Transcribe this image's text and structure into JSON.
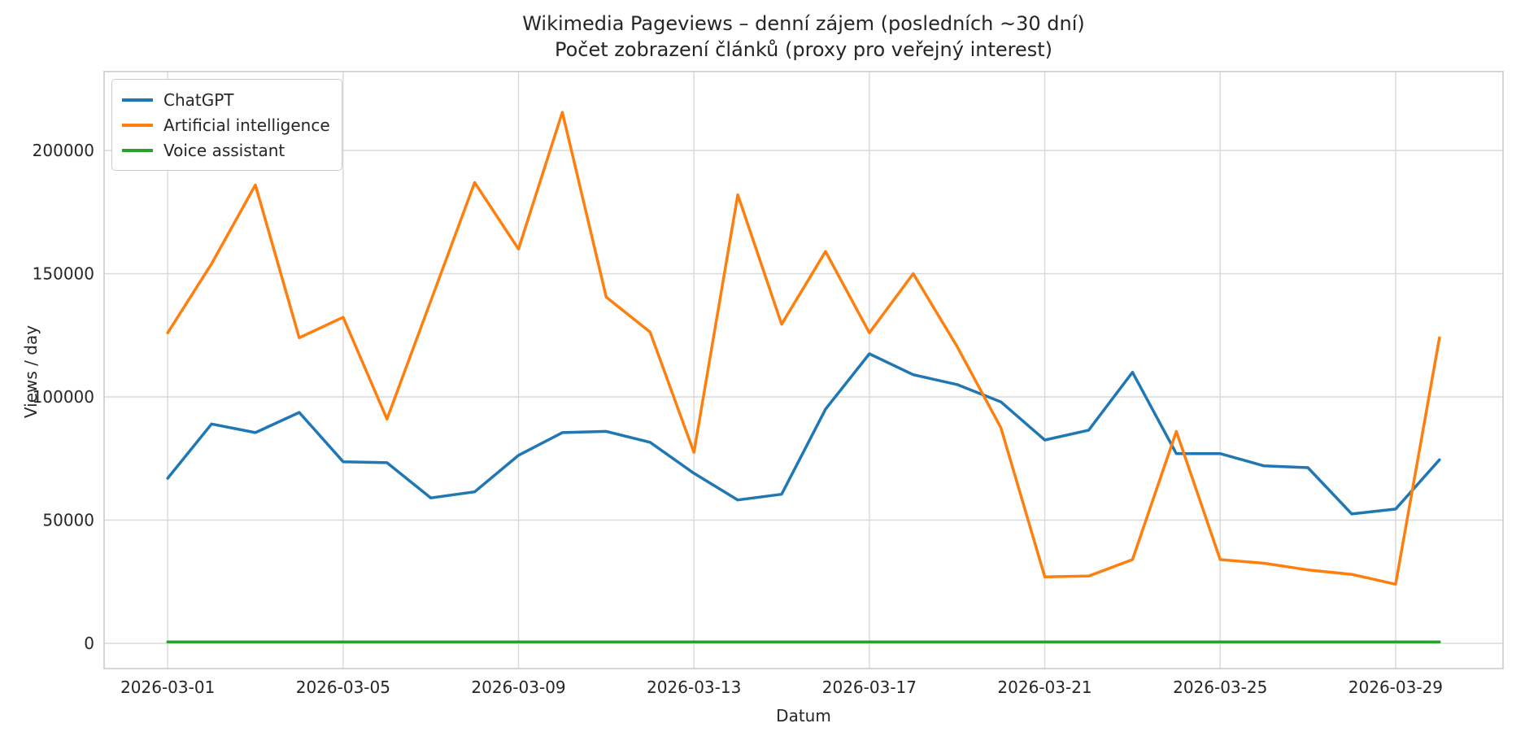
{
  "figure": {
    "title": "Wikimedia Pageviews – denní zájem (posledních ~30 dní)",
    "subtitle": "Počet zobrazení článků (proxy pro veřejný interest)",
    "background_color": "#ffffff",
    "grid_color": "#d9d9d9",
    "spine_color": "#cccccc",
    "text_color": "#262626"
  },
  "chart_data": {
    "type": "line",
    "title": "Wikimedia Pageviews – denní zájem (posledních ~30 dní)",
    "subtitle": "Počet zobrazení článků (proxy pro veřejný interest)",
    "xlabel": "Datum",
    "ylabel": "Views / day",
    "grid": true,
    "legend_position": "upper left",
    "x": [
      "2026-03-01",
      "2026-03-02",
      "2026-03-03",
      "2026-03-04",
      "2026-03-05",
      "2026-03-06",
      "2026-03-07",
      "2026-03-08",
      "2026-03-09",
      "2026-03-10",
      "2026-03-11",
      "2026-03-12",
      "2026-03-13",
      "2026-03-14",
      "2026-03-15",
      "2026-03-16",
      "2026-03-17",
      "2026-03-18",
      "2026-03-19",
      "2026-03-20",
      "2026-03-21",
      "2026-03-22",
      "2026-03-23",
      "2026-03-24",
      "2026-03-25",
      "2026-03-26",
      "2026-03-27",
      "2026-03-28",
      "2026-03-29",
      "2026-03-30"
    ],
    "x_tick_labels": [
      "2026-03-01",
      "2026-03-05",
      "2026-03-09",
      "2026-03-13",
      "2026-03-17",
      "2026-03-21",
      "2026-03-25",
      "2026-03-29"
    ],
    "x_tick_indices": [
      0,
      4,
      8,
      12,
      16,
      20,
      24,
      28
    ],
    "y_ticks": [
      0,
      50000,
      100000,
      150000,
      200000
    ],
    "ylim": [
      -10231,
      232013
    ],
    "series": [
      {
        "name": "ChatGPT",
        "color": "#1f77b4",
        "values": [
          67000,
          89000,
          85500,
          93700,
          73700,
          73300,
          59000,
          61500,
          76300,
          85500,
          86000,
          81600,
          69000,
          58200,
          60500,
          95000,
          117500,
          109000,
          105000,
          98000,
          82500,
          86500,
          110000,
          77000,
          77000,
          72000,
          71300,
          52500,
          54500,
          74500
        ]
      },
      {
        "name": "Artificial intelligence",
        "color": "#ff7f0e",
        "values": [
          126000,
          154000,
          186000,
          124000,
          132300,
          91000,
          139000,
          187000,
          160000,
          215500,
          140500,
          126300,
          77500,
          182000,
          129500,
          159000,
          126000,
          150000,
          120500,
          87500,
          27000,
          27300,
          34000,
          86000,
          34000,
          32500,
          29800,
          28000,
          24000,
          124000
        ]
      },
      {
        "name": "Voice assistant",
        "color": "#2ca02c",
        "values": [
          600,
          600,
          600,
          600,
          600,
          600,
          600,
          600,
          600,
          600,
          600,
          600,
          600,
          600,
          600,
          600,
          600,
          600,
          600,
          600,
          600,
          600,
          600,
          600,
          600,
          600,
          600,
          600,
          600,
          600
        ]
      }
    ]
  }
}
